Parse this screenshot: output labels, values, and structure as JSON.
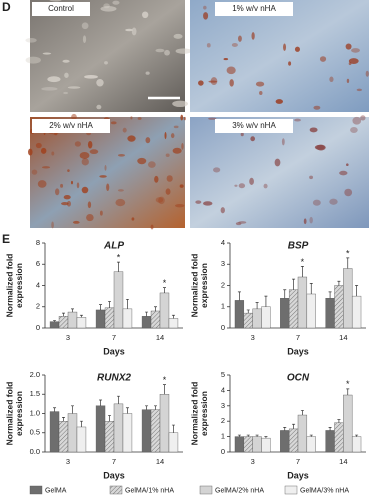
{
  "panel_labels": [
    "D",
    "E"
  ],
  "micrographs": [
    {
      "label": "Control"
    },
    {
      "label": "1% w/v nHA"
    },
    {
      "label": "2% w/v nHA"
    },
    {
      "label": "3% w/v nHA"
    }
  ],
  "chart_data": [
    {
      "type": "bar",
      "title": "ALP",
      "y_label": "Normalized fold expression",
      "x_label": "Days",
      "categories": [
        "3",
        "7",
        "14"
      ],
      "ylim": [
        0,
        8
      ],
      "yticks": [
        0,
        2,
        4,
        6,
        8
      ],
      "series": [
        {
          "name": "GelMA",
          "color": "#6e6e6e",
          "values": [
            0.6,
            1.7,
            1.1
          ],
          "errors": [
            0.1,
            0.5,
            0.4
          ]
        },
        {
          "name": "GelMA/1% nHA",
          "color": "#bdbdbd",
          "hatch": true,
          "values": [
            1.1,
            1.9,
            1.6
          ],
          "errors": [
            0.3,
            0.6,
            0.4
          ]
        },
        {
          "name": "GelMA/2% nHA",
          "color": "#d4d4d4",
          "values": [
            1.5,
            5.3,
            3.3
          ],
          "errors": [
            0.3,
            0.9,
            0.5
          ],
          "marks": [
            null,
            "*",
            "*"
          ]
        },
        {
          "name": "GelMA/3% nHA",
          "color": "#efefef",
          "values": [
            1.0,
            1.8,
            0.9
          ],
          "errors": [
            0.2,
            0.9,
            0.3
          ]
        }
      ]
    },
    {
      "type": "bar",
      "title": "BSP",
      "y_label": "Normalized fold expression",
      "x_label": "Days",
      "categories": [
        "3",
        "7",
        "14"
      ],
      "ylim": [
        0,
        4
      ],
      "yticks": [
        0,
        1,
        2,
        3,
        4
      ],
      "series": [
        {
          "color": "#6e6e6e",
          "values": [
            1.3,
            1.4,
            1.4
          ],
          "errors": [
            0.4,
            0.4,
            0.3
          ]
        },
        {
          "color": "#bdbdbd",
          "hatch": true,
          "values": [
            0.7,
            1.8,
            2.0
          ],
          "errors": [
            0.15,
            0.5,
            0.2
          ]
        },
        {
          "color": "#d4d4d4",
          "values": [
            0.9,
            2.4,
            2.8
          ],
          "errors": [
            0.3,
            0.5,
            0.5
          ],
          "marks": [
            null,
            "*",
            "*"
          ]
        },
        {
          "color": "#efefef",
          "values": [
            1.0,
            1.6,
            1.5
          ],
          "errors": [
            0.5,
            0.5,
            0.5
          ]
        }
      ]
    },
    {
      "type": "bar",
      "title": "RUNX2",
      "y_label": "Normalized fold expression",
      "x_label": "Days",
      "categories": [
        "3",
        "7",
        "14"
      ],
      "ylim": [
        0,
        2
      ],
      "yticks": [
        {
          "value": 0,
          "label": "0.0"
        },
        0.5,
        {
          "value": 1,
          "label": "1.0"
        },
        1.5,
        {
          "value": 2,
          "label": "2.0"
        }
      ],
      "series": [
        {
          "color": "#6e6e6e",
          "values": [
            1.05,
            1.2,
            1.1
          ],
          "errors": [
            0.1,
            0.15,
            0.1
          ]
        },
        {
          "color": "#bdbdbd",
          "hatch": true,
          "values": [
            0.8,
            0.8,
            1.1
          ],
          "errors": [
            0.1,
            0.15,
            0.1
          ]
        },
        {
          "color": "#d4d4d4",
          "values": [
            1.0,
            1.25,
            1.5
          ],
          "errors": [
            0.2,
            0.2,
            0.25
          ],
          "marks": [
            null,
            null,
            "*"
          ]
        },
        {
          "color": "#efefef",
          "values": [
            0.65,
            1.0,
            0.5
          ],
          "errors": [
            0.15,
            0.15,
            0.2
          ]
        }
      ]
    },
    {
      "type": "bar",
      "title": "OCN",
      "y_label": "Normalized fold expression",
      "x_label": "Days",
      "categories": [
        "3",
        "7",
        "14"
      ],
      "ylim": [
        0,
        5
      ],
      "yticks": [
        0,
        1,
        2,
        3,
        4,
        5
      ],
      "series": [
        {
          "color": "#6e6e6e",
          "values": [
            1.0,
            1.4,
            1.4
          ],
          "errors": [
            0.1,
            0.2,
            0.2
          ]
        },
        {
          "color": "#bdbdbd",
          "hatch": true,
          "values": [
            1.0,
            1.5,
            1.9
          ],
          "errors": [
            0.1,
            0.3,
            0.2
          ]
        },
        {
          "color": "#d4d4d4",
          "values": [
            1.0,
            2.4,
            3.7
          ],
          "errors": [
            0.1,
            0.3,
            0.4
          ],
          "marks": [
            null,
            null,
            "*"
          ]
        },
        {
          "color": "#efefef",
          "values": [
            0.9,
            1.0,
            1.0
          ],
          "errors": [
            0.1,
            0.1,
            0.1
          ]
        }
      ]
    }
  ]
}
